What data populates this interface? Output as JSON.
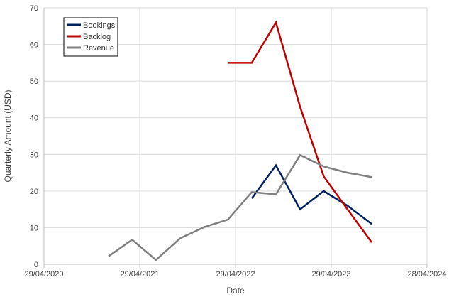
{
  "chart_data": {
    "type": "line",
    "title": "",
    "xlabel": "Date",
    "ylabel": "Quarterly Amount (USD)",
    "ylim": [
      0,
      70
    ],
    "yticks": [
      0,
      10,
      20,
      30,
      40,
      50,
      60,
      70
    ],
    "xlim": [
      "2020-04-29",
      "2024-04-28"
    ],
    "xtick_labels": [
      "29/04/2020",
      "29/04/2021",
      "29/04/2022",
      "29/04/2023",
      "28/04/2024"
    ],
    "grid": true,
    "legend": "top-left",
    "series": [
      {
        "name": "Bookings",
        "color": "#002060",
        "points": [
          {
            "x": "2022-06-30",
            "y": 18
          },
          {
            "x": "2022-09-30",
            "y": 27
          },
          {
            "x": "2022-12-31",
            "y": 15
          },
          {
            "x": "2023-03-31",
            "y": 20
          },
          {
            "x": "2023-06-30",
            "y": 16
          },
          {
            "x": "2023-09-30",
            "y": 11
          }
        ]
      },
      {
        "name": "Backlog",
        "color": "#C00000",
        "points": [
          {
            "x": "2022-03-31",
            "y": 55
          },
          {
            "x": "2022-06-30",
            "y": 55
          },
          {
            "x": "2022-09-30",
            "y": 66
          },
          {
            "x": "2022-12-31",
            "y": 43
          },
          {
            "x": "2023-03-31",
            "y": 24
          },
          {
            "x": "2023-06-30",
            "y": 15
          },
          {
            "x": "2023-09-30",
            "y": 6
          }
        ]
      },
      {
        "name": "Revenue",
        "color": "#7F7F7F",
        "points": [
          {
            "x": "2020-12-31",
            "y": 2.2
          },
          {
            "x": "2021-03-31",
            "y": 6.7
          },
          {
            "x": "2021-06-30",
            "y": 1.2
          },
          {
            "x": "2021-09-30",
            "y": 7.1
          },
          {
            "x": "2022-01-01",
            "y": 10.2
          },
          {
            "x": "2022-03-31",
            "y": 12.2
          },
          {
            "x": "2022-06-30",
            "y": 19.7
          },
          {
            "x": "2022-09-30",
            "y": 19.1
          },
          {
            "x": "2022-12-31",
            "y": 29.8
          },
          {
            "x": "2023-03-31",
            "y": 26.7
          },
          {
            "x": "2023-06-30",
            "y": 25
          },
          {
            "x": "2023-09-30",
            "y": 23.8
          }
        ]
      }
    ]
  }
}
